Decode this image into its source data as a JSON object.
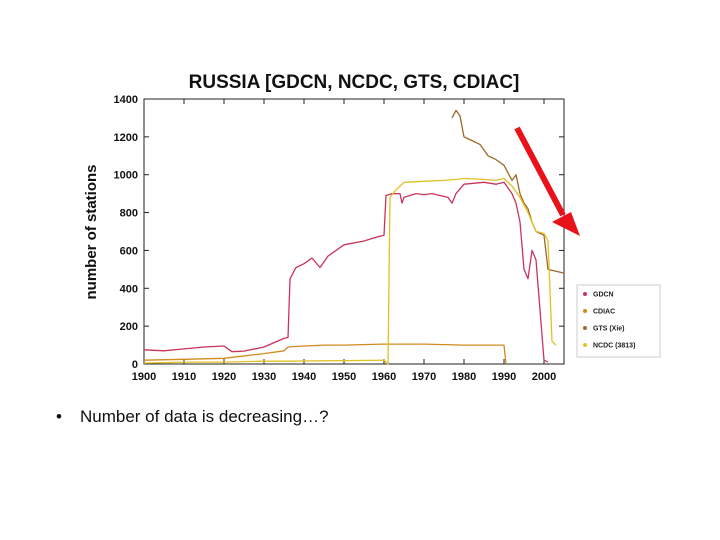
{
  "slide": {
    "bullet_symbol": "•",
    "bullet_text": "Number of data is decreasing…?"
  },
  "chart_data": {
    "type": "line",
    "title": "RUSSIA [GDCN, NCDC, GTS, CDIAC]",
    "xlabel": "",
    "ylabel": "number of stations",
    "xlim": [
      1900,
      2005
    ],
    "ylim": [
      0,
      1400
    ],
    "xticks": [
      1900,
      1910,
      1920,
      1930,
      1940,
      1950,
      1960,
      1970,
      1980,
      1990,
      2000
    ],
    "yticks": [
      0,
      200,
      400,
      600,
      800,
      1000,
      1200,
      1400
    ],
    "grid": false,
    "legend_position": "right",
    "series": [
      {
        "name": "GDCN",
        "color": "#c8345a",
        "points": [
          [
            1900,
            75
          ],
          [
            1905,
            70
          ],
          [
            1910,
            80
          ],
          [
            1915,
            90
          ],
          [
            1920,
            95
          ],
          [
            1922,
            65
          ],
          [
            1925,
            68
          ],
          [
            1930,
            90
          ],
          [
            1935,
            135
          ],
          [
            1936,
            140
          ],
          [
            1936.5,
            450
          ],
          [
            1938,
            510
          ],
          [
            1940,
            530
          ],
          [
            1942,
            560
          ],
          [
            1944,
            510
          ],
          [
            1946,
            570
          ],
          [
            1950,
            630
          ],
          [
            1955,
            650
          ],
          [
            1958,
            670
          ],
          [
            1960,
            680
          ],
          [
            1960.5,
            890
          ],
          [
            1962,
            900
          ],
          [
            1964,
            900
          ],
          [
            1964.5,
            850
          ],
          [
            1965,
            880
          ],
          [
            1968,
            900
          ],
          [
            1970,
            895
          ],
          [
            1972,
            900
          ],
          [
            1974,
            890
          ],
          [
            1976,
            880
          ],
          [
            1977,
            850
          ],
          [
            1978,
            900
          ],
          [
            1980,
            950
          ],
          [
            1985,
            960
          ],
          [
            1988,
            950
          ],
          [
            1990,
            960
          ],
          [
            1991,
            930
          ],
          [
            1992,
            900
          ],
          [
            1993,
            850
          ],
          [
            1994,
            750
          ],
          [
            1995,
            500
          ],
          [
            1996,
            450
          ],
          [
            1997,
            600
          ],
          [
            1998,
            550
          ],
          [
            2000,
            20
          ],
          [
            2001,
            10
          ]
        ]
      },
      {
        "name": "CDIAC",
        "color": "#d08a1e",
        "points": [
          [
            1900,
            20
          ],
          [
            1910,
            25
          ],
          [
            1920,
            30
          ],
          [
            1930,
            55
          ],
          [
            1935,
            70
          ],
          [
            1936,
            90
          ],
          [
            1940,
            95
          ],
          [
            1945,
            100
          ],
          [
            1950,
            100
          ],
          [
            1960,
            105
          ],
          [
            1970,
            105
          ],
          [
            1980,
            100
          ],
          [
            1990,
            100
          ],
          [
            1990.5,
            0
          ]
        ]
      },
      {
        "name": "GTS (Xie)",
        "color": "#9c6a28",
        "points": [
          [
            1977,
            1300
          ],
          [
            1978,
            1340
          ],
          [
            1979,
            1310
          ],
          [
            1980,
            1200
          ],
          [
            1982,
            1180
          ],
          [
            1984,
            1160
          ],
          [
            1986,
            1100
          ],
          [
            1988,
            1080
          ],
          [
            1990,
            1050
          ],
          [
            1992,
            970
          ],
          [
            1993,
            1000
          ],
          [
            1994,
            900
          ],
          [
            1995,
            850
          ],
          [
            1996,
            820
          ],
          [
            1997,
            750
          ],
          [
            1998,
            700
          ],
          [
            2000,
            680
          ],
          [
            2001,
            500
          ],
          [
            2003,
            490
          ],
          [
            2005,
            480
          ]
        ]
      },
      {
        "name": "NCDC (3813)",
        "color": "#e0c025",
        "points": [
          [
            1900,
            5
          ],
          [
            1910,
            10
          ],
          [
            1920,
            10
          ],
          [
            1930,
            15
          ],
          [
            1935,
            15
          ],
          [
            1960,
            20
          ],
          [
            1961,
            0
          ],
          [
            1961.5,
            880
          ],
          [
            1963,
            920
          ],
          [
            1965,
            960
          ],
          [
            1970,
            965
          ],
          [
            1975,
            970
          ],
          [
            1978,
            975
          ],
          [
            1980,
            980
          ],
          [
            1985,
            975
          ],
          [
            1988,
            970
          ],
          [
            1990,
            980
          ],
          [
            1992,
            940
          ],
          [
            1994,
            880
          ],
          [
            1996,
            800
          ],
          [
            1998,
            700
          ],
          [
            2000,
            690
          ],
          [
            2001,
            650
          ],
          [
            2002,
            120
          ],
          [
            2003,
            100
          ]
        ]
      }
    ]
  },
  "colors": {
    "annotation_arrow": "#e8121b",
    "axis": "#222222"
  }
}
